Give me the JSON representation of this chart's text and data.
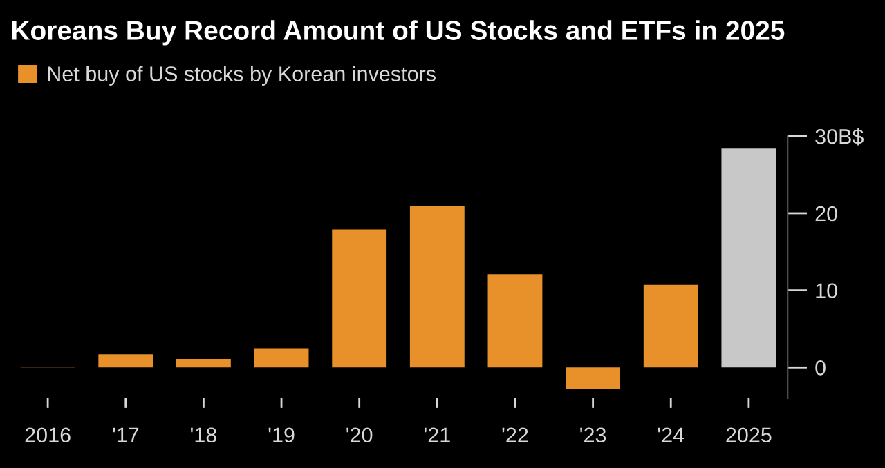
{
  "chart_data": {
    "type": "bar",
    "title": "Koreans Buy Record Amount of US Stocks and ETFs in 2025",
    "categories": [
      "2016",
      "'17",
      "'18",
      "'19",
      "'20",
      "'21",
      "'22",
      "'23",
      "'24",
      "2025"
    ],
    "series": [
      {
        "name": "Net buy of US stocks by Korean investors",
        "color": "#e8912a",
        "colors": [
          "#e8912a",
          "#e8912a",
          "#e8912a",
          "#e8912a",
          "#e8912a",
          "#e8912a",
          "#e8912a",
          "#e8912a",
          "#e8912a",
          "#c8c8c8"
        ],
        "values": [
          0.1,
          1.7,
          1.1,
          2.5,
          17.9,
          20.9,
          12.1,
          -2.8,
          10.7,
          28.4
        ]
      }
    ],
    "ylim": [
      -4,
      30
    ],
    "yticks": [
      0,
      10,
      20,
      {
        "value": 30,
        "label": "30B$"
      }
    ],
    "grid": false,
    "legend": "top left"
  }
}
